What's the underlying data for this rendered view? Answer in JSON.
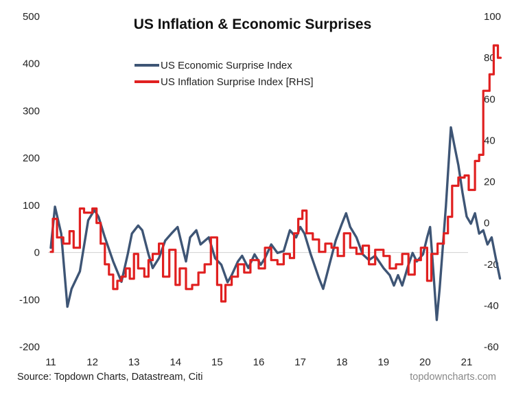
{
  "chart_data": {
    "type": "line",
    "title": "US Inflation & Economic Surprises",
    "xlabel": "",
    "ylabel": "",
    "y2label": "",
    "x_tick_labels": [
      "11",
      "12",
      "13",
      "14",
      "15",
      "16",
      "17",
      "18",
      "19",
      "20",
      "21"
    ],
    "x_tick_values": [
      2011,
      2012,
      2013,
      2014,
      2015,
      2016,
      2017,
      2018,
      2019,
      2020,
      2021
    ],
    "xlim": [
      2011,
      2021.85
    ],
    "ylim": [
      -200,
      500
    ],
    "y_ticks": [
      500,
      400,
      300,
      200,
      100,
      0,
      -100,
      -200
    ],
    "y2lim": [
      -60,
      100
    ],
    "y2_ticks": [
      100,
      80,
      60,
      40,
      20,
      0,
      -20,
      -40,
      -60
    ],
    "zero_line": true,
    "legend_position": "top-center",
    "series": [
      {
        "name": "US Economic Surprise Index",
        "axis": "left",
        "color": "#3e5575",
        "x": [
          2011.0,
          2011.1,
          2011.25,
          2011.4,
          2011.5,
          2011.7,
          2011.9,
          2012.05,
          2012.15,
          2012.3,
          2012.5,
          2012.7,
          2012.85,
          2012.95,
          2013.1,
          2013.2,
          2013.35,
          2013.45,
          2013.6,
          2013.75,
          2013.9,
          2014.05,
          2014.15,
          2014.25,
          2014.35,
          2014.5,
          2014.6,
          2014.8,
          2014.95,
          2015.1,
          2015.25,
          2015.35,
          2015.5,
          2015.6,
          2015.75,
          2015.9,
          2016.05,
          2016.15,
          2016.3,
          2016.45,
          2016.6,
          2016.75,
          2016.9,
          2017.0,
          2017.1,
          2017.25,
          2017.45,
          2017.55,
          2017.7,
          2017.85,
          2018.0,
          2018.1,
          2018.2,
          2018.35,
          2018.5,
          2018.65,
          2018.8,
          2019.0,
          2019.15,
          2019.25,
          2019.35,
          2019.45,
          2019.6,
          2019.7,
          2019.8,
          2019.95,
          2020.05,
          2020.12,
          2020.2,
          2020.28,
          2020.35,
          2020.5,
          2020.62,
          2020.7,
          2020.8,
          2020.9,
          2021.0,
          2021.1,
          2021.2,
          2021.3,
          2021.4,
          2021.5,
          2021.6,
          2021.7,
          2021.8
        ],
        "values": [
          10,
          97,
          40,
          -115,
          -77,
          -40,
          68,
          90,
          75,
          32,
          -19,
          -62,
          -4,
          40,
          57,
          47,
          -4,
          -33,
          -12,
          25,
          40,
          54,
          17,
          -19,
          32,
          47,
          17,
          32,
          -12,
          -26,
          -63,
          -48,
          -19,
          -7,
          -33,
          -4,
          -26,
          -12,
          17,
          -1,
          3,
          47,
          32,
          54,
          40,
          -4,
          -55,
          -77,
          -26,
          25,
          61,
          83,
          54,
          32,
          -4,
          -16,
          -7,
          -33,
          -48,
          -70,
          -48,
          -70,
          -26,
          -1,
          -19,
          -4,
          32,
          54,
          -41,
          -143,
          -77,
          97,
          265,
          229,
          185,
          127,
          76,
          61,
          83,
          40,
          47,
          17,
          32,
          -12,
          -55
        ]
      },
      {
        "name": "US Inflation Surprise Index [RHS]",
        "axis": "right",
        "color": "#e02020",
        "step": true,
        "x": [
          2011.0,
          2011.05,
          2011.15,
          2011.3,
          2011.45,
          2011.55,
          2011.7,
          2011.8,
          2012.0,
          2012.1,
          2012.2,
          2012.3,
          2012.4,
          2012.5,
          2012.6,
          2012.7,
          2012.8,
          2012.9,
          2013.0,
          2013.1,
          2013.25,
          2013.35,
          2013.45,
          2013.6,
          2013.7,
          2013.85,
          2014.0,
          2014.1,
          2014.25,
          2014.4,
          2014.55,
          2014.7,
          2014.85,
          2015.0,
          2015.1,
          2015.2,
          2015.35,
          2015.5,
          2015.65,
          2015.8,
          2016.0,
          2016.15,
          2016.3,
          2016.45,
          2016.6,
          2016.75,
          2016.85,
          2016.95,
          2017.05,
          2017.15,
          2017.3,
          2017.45,
          2017.6,
          2017.75,
          2017.9,
          2018.05,
          2018.2,
          2018.35,
          2018.5,
          2018.65,
          2018.8,
          2019.0,
          2019.15,
          2019.3,
          2019.45,
          2019.6,
          2019.75,
          2019.9,
          2020.05,
          2020.15,
          2020.3,
          2020.45,
          2020.55,
          2020.65,
          2020.8,
          2020.95,
          2021.05,
          2021.2,
          2021.3,
          2021.4,
          2021.55,
          2021.65,
          2021.75
        ],
        "values": [
          -14,
          2,
          -7,
          -10,
          -4,
          -12,
          7,
          5,
          7,
          0,
          -10,
          -20,
          -25,
          -32,
          -28,
          -26,
          -22,
          -27,
          -15,
          -22,
          -26,
          -18,
          -15,
          -10,
          -26,
          -13,
          -30,
          -22,
          -32,
          -30,
          -24,
          -20,
          -7,
          -30,
          -38,
          -30,
          -26,
          -20,
          -24,
          -18,
          -22,
          -12,
          -18,
          -20,
          -15,
          -17,
          -5,
          2,
          6,
          -5,
          -8,
          -14,
          -10,
          -12,
          -16,
          -5,
          -12,
          -15,
          -11,
          -20,
          -13,
          -16,
          -22,
          -20,
          -15,
          -25,
          -18,
          -12,
          -28,
          -15,
          -10,
          -5,
          3,
          18,
          22,
          23,
          16,
          30,
          33,
          64,
          72,
          86,
          80
        ]
      }
    ]
  },
  "footer": {
    "source": "Source: Topdown Charts, Datastream, Citi",
    "brand": "topdowncharts.com"
  }
}
